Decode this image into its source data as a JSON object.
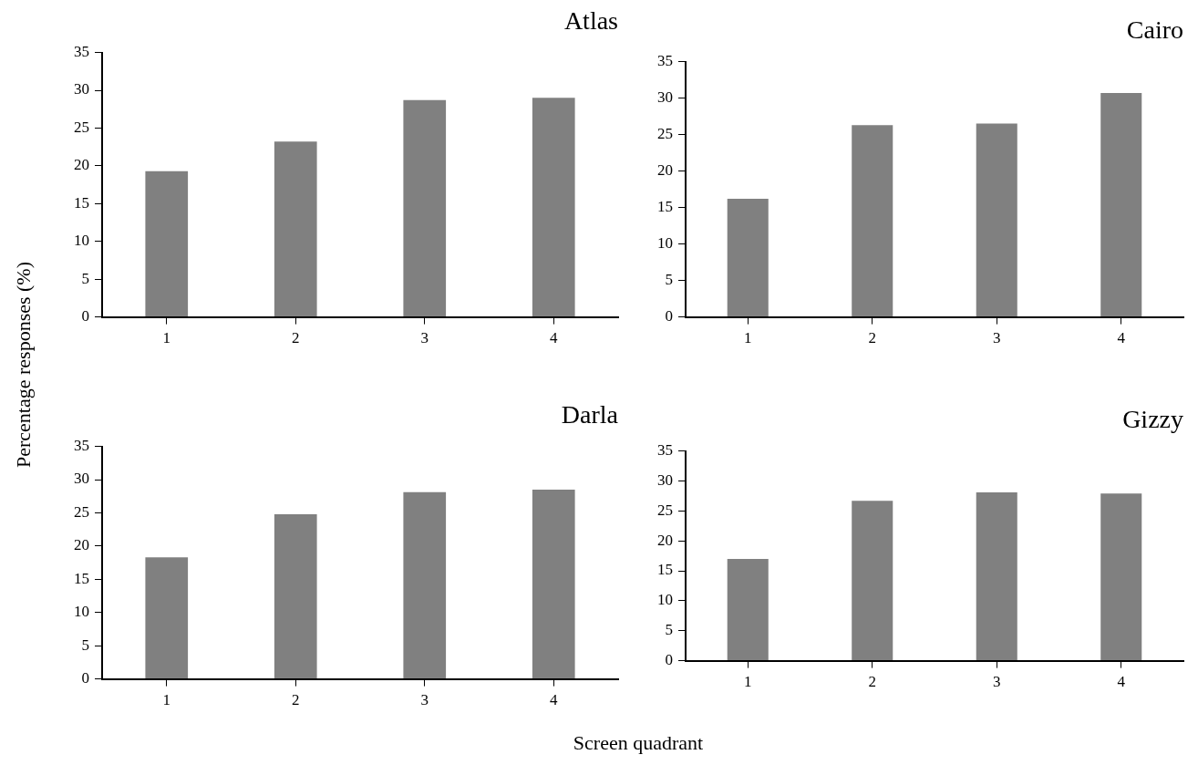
{
  "chart_data": [
    {
      "type": "bar",
      "title": "Atlas",
      "ylabel": "Percentage responses (%)",
      "categories": [
        "1",
        "2",
        "3",
        "4"
      ],
      "values": [
        19.3,
        23.2,
        28.7,
        29.0
      ],
      "color": "#808080",
      "ylim": [
        0,
        35
      ],
      "yticks": [
        0,
        5,
        10,
        15,
        20,
        25,
        30,
        35
      ],
      "grid": false,
      "legend": false
    },
    {
      "type": "bar",
      "title": "Cairo",
      "categories": [
        "1",
        "2",
        "3",
        "4"
      ],
      "values": [
        16.2,
        26.3,
        26.5,
        30.7
      ],
      "color": "#808080",
      "ylim": [
        0,
        35
      ],
      "yticks": [
        0,
        5,
        10,
        15,
        20,
        25,
        30,
        35
      ],
      "grid": false,
      "legend": false
    },
    {
      "type": "bar",
      "title": "Darla",
      "categories": [
        "1",
        "2",
        "3",
        "4"
      ],
      "values": [
        18.3,
        24.8,
        28.1,
        28.5
      ],
      "color": "#808080",
      "ylim": [
        0,
        35
      ],
      "yticks": [
        0,
        5,
        10,
        15,
        20,
        25,
        30,
        35
      ],
      "grid": false,
      "legend": false
    },
    {
      "type": "bar",
      "title": "Gizzy",
      "xlabel": "Screen quadrant",
      "categories": [
        "1",
        "2",
        "3",
        "4"
      ],
      "values": [
        17.0,
        26.7,
        28.1,
        27.9
      ],
      "color": "#808080",
      "ylim": [
        0,
        35
      ],
      "yticks": [
        0,
        5,
        10,
        15,
        20,
        25,
        30,
        35
      ],
      "grid": false,
      "legend": false
    }
  ]
}
